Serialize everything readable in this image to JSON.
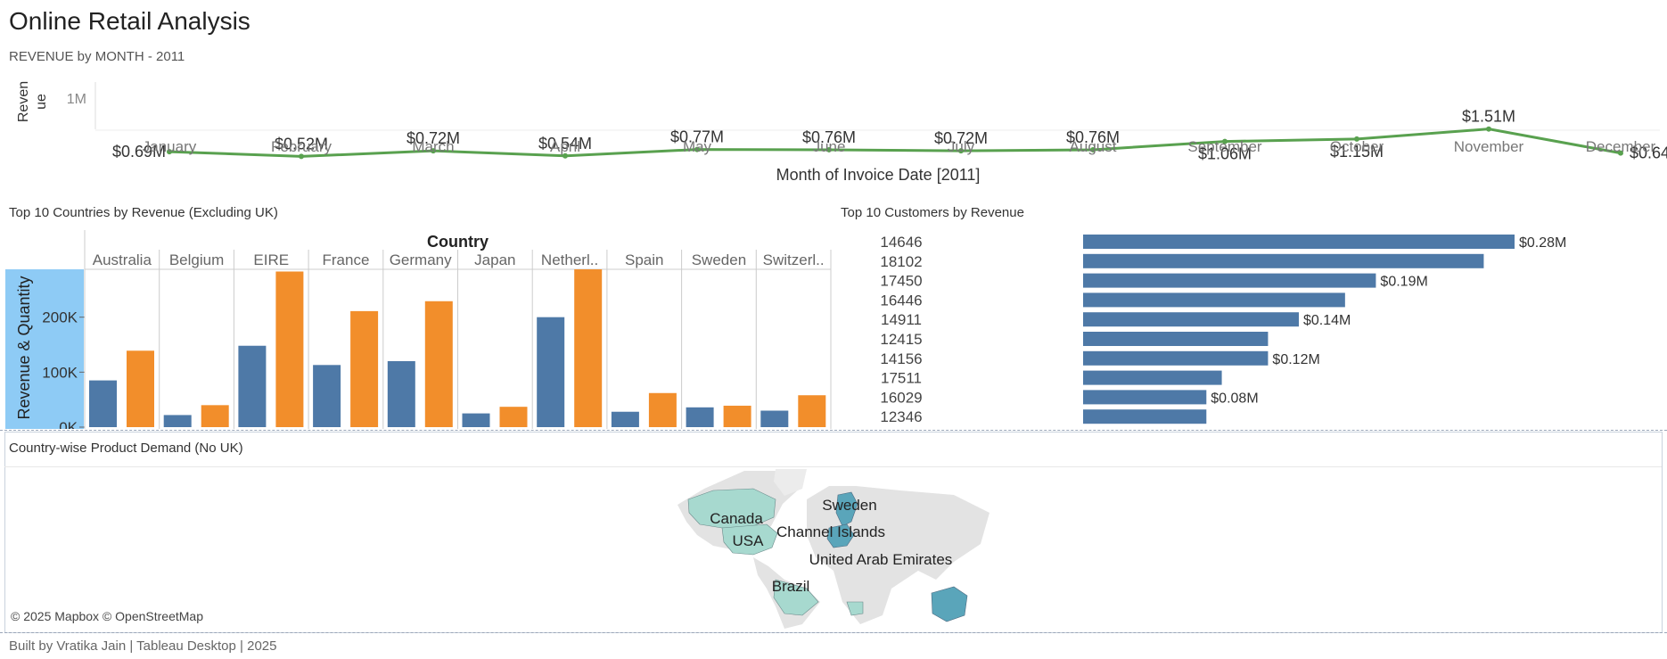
{
  "dashboard": {
    "title": "Online Retail Analysis",
    "footer": "Built by Vratika Jain | Tableau Desktop | 2025"
  },
  "colors": {
    "line": "#59a14f",
    "blue": "#4e79a7",
    "orange": "#f28e2b",
    "axis_highlight": "#8ecbf5",
    "map_land": "#e3e3e3",
    "map_highlight_light": "#a7d9cf",
    "map_highlight_dark": "#5aa5ba"
  },
  "line_panel": {
    "title": "REVENUE by MONTH - 2011"
  },
  "bar_panel": {
    "title": "Top 10 Countries by Revenue (Excluding UK)"
  },
  "customer_panel": {
    "title": "Top 10 Customers by Revenue"
  },
  "map_panel": {
    "title": "Country-wise Product Demand (No UK)",
    "credit": "© 2025 Mapbox © OpenStreetMap",
    "labels": [
      "Sweden",
      "Canada",
      "Channel Islands",
      "USA",
      "United Arab Emirates",
      "Brazil"
    ]
  },
  "chart_data": [
    {
      "type": "line",
      "x": [
        "January",
        "February",
        "March",
        "April",
        "May",
        "June",
        "July",
        "August",
        "September",
        "October",
        "November",
        "December"
      ],
      "values": [
        0.69,
        0.52,
        0.72,
        0.54,
        0.77,
        0.76,
        0.72,
        0.76,
        1.06,
        1.15,
        1.51,
        0.64
      ],
      "data_labels": [
        "$0.69M",
        "$0.52M",
        "$0.72M",
        "$0.54M",
        "$0.77M",
        "$0.76M",
        "$0.72M",
        "$0.76M",
        "$1.06M",
        "$1.15M",
        "$1.51M",
        "$0.64M"
      ],
      "xlabel": "Month of Invoice Date [2011]",
      "ylabel": "Revenue",
      "y_ticks": [
        "1M"
      ],
      "grid": false
    },
    {
      "type": "bar",
      "xlabel": "Country",
      "ylabel": "Revenue & Quantity",
      "categories": [
        "Australia",
        "Belgium",
        "EIRE",
        "France",
        "Germany",
        "Japan",
        "Netherl..",
        "Spain",
        "Sweden",
        "Switzerl.."
      ],
      "series": [
        {
          "values": [
            85000,
            22000,
            148000,
            113000,
            120000,
            25000,
            200000,
            28000,
            36000,
            30000
          ]
        },
        {
          "values": [
            139000,
            40000,
            283000,
            211000,
            229000,
            37000,
            287000,
            62000,
            39000,
            58000
          ]
        }
      ],
      "y_ticks": [
        "0K",
        "100K",
        "200K"
      ],
      "ylim": [
        0,
        300000
      ]
    },
    {
      "type": "bar",
      "orientation": "horizontal",
      "categories": [
        "14646",
        "18102",
        "17450",
        "16446",
        "14911",
        "12415",
        "14156",
        "17511",
        "16029",
        "12346"
      ],
      "values": [
        0.28,
        0.26,
        0.19,
        0.17,
        0.14,
        0.12,
        0.12,
        0.09,
        0.08,
        0.08
      ],
      "data_labels": [
        "$0.28M",
        "",
        "$0.19M",
        "",
        "$0.14M",
        "",
        "$0.12M",
        "",
        "$0.08M",
        ""
      ]
    }
  ]
}
